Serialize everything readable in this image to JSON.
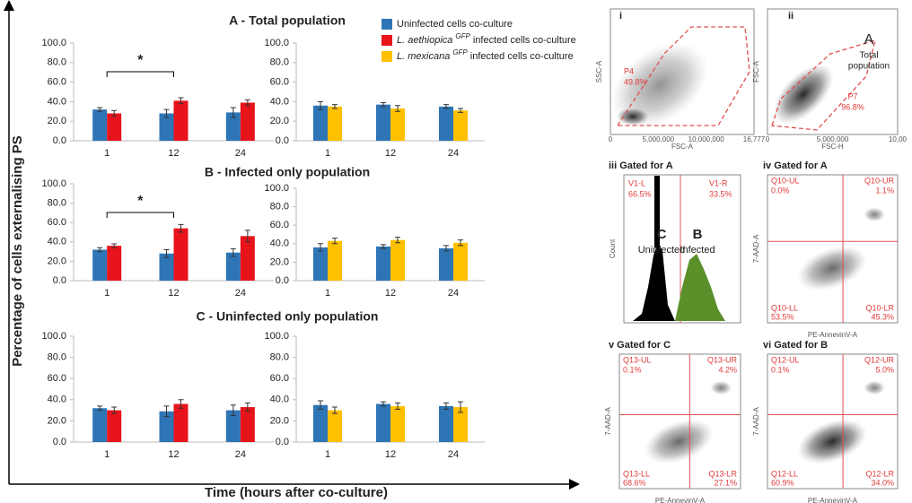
{
  "figure": {
    "y_label": "Percentage of cells externalising PS",
    "x_label": "Time (hours after co-culture)"
  },
  "legend": [
    {
      "text": "Uninfected cells co-culture",
      "color": "#2e75b6"
    },
    {
      "species": "L. aethiopica",
      "tag": "GFP",
      "text": "infected cells co-culture",
      "color": "#e8141b"
    },
    {
      "species": "L. mexicana",
      "tag": "GFP",
      "text": "infected cells co-culture",
      "color": "#ffc000"
    }
  ],
  "chart_data": [
    {
      "type": "bar",
      "title": "A - Total population",
      "categories": [
        "1",
        "12",
        "24"
      ],
      "series": [
        {
          "color": "#2e75b6",
          "values": [
            32,
            28,
            29
          ],
          "errors": [
            2,
            4,
            5
          ]
        },
        {
          "color": "#e8141b",
          "values": [
            28,
            41,
            39
          ],
          "errors": [
            3,
            3,
            3
          ]
        }
      ],
      "ylim": [
        0,
        100
      ],
      "yticks": [
        {
          "value": 0,
          "label": "0.0"
        },
        {
          "value": 20,
          "label": "20.0"
        },
        {
          "value": 40,
          "label": "40.0"
        },
        {
          "value": 60,
          "label": "60.0"
        },
        {
          "value": 80,
          "label": "80.0"
        },
        {
          "value": 100,
          "label": "100.0"
        }
      ],
      "annotations": [
        {
          "text": "*"
        }
      ]
    },
    {
      "type": "bar",
      "categories": [
        "1",
        "12",
        "24"
      ],
      "series": [
        {
          "color": "#2e75b6",
          "values": [
            36,
            37,
            35
          ],
          "errors": [
            4,
            2,
            2
          ]
        },
        {
          "color": "#ffc000",
          "values": [
            35,
            33,
            31
          ],
          "errors": [
            2,
            3,
            2
          ]
        }
      ],
      "ylim": [
        0,
        100
      ],
      "yticks": [
        {
          "value": 0,
          "label": "0.0"
        },
        {
          "value": 20,
          "label": "20.0"
        },
        {
          "value": 40,
          "label": "40.0"
        },
        {
          "value": 60,
          "label": "60.0"
        },
        {
          "value": 80,
          "label": "80.0"
        },
        {
          "value": 100,
          "label": "100.0"
        }
      ]
    },
    {
      "type": "bar",
      "title": "B - Infected only population",
      "categories": [
        "1",
        "12",
        "24"
      ],
      "series": [
        {
          "color": "#2e75b6",
          "values": [
            32,
            28,
            29
          ],
          "errors": [
            2,
            4,
            4
          ]
        },
        {
          "color": "#e8141b",
          "values": [
            36,
            54,
            46
          ],
          "errors": [
            2,
            4,
            6
          ]
        }
      ],
      "ylim": [
        0,
        100
      ],
      "yticks": [
        {
          "value": 0,
          "label": "0.0"
        },
        {
          "value": 20,
          "label": "20.0"
        },
        {
          "value": 40,
          "label": "40.0"
        },
        {
          "value": 60,
          "label": "60.0"
        },
        {
          "value": 80,
          "label": "80.0"
        },
        {
          "value": 100,
          "label": "100.0"
        }
      ],
      "annotations": [
        {
          "text": "*"
        }
      ]
    },
    {
      "type": "bar",
      "categories": [
        "1",
        "12",
        "24"
      ],
      "series": [
        {
          "color": "#2e75b6",
          "values": [
            36,
            37,
            35
          ],
          "errors": [
            4,
            2,
            3
          ]
        },
        {
          "color": "#ffc000",
          "values": [
            43,
            44,
            41
          ],
          "errors": [
            3,
            3,
            3
          ]
        }
      ],
      "ylim": [
        0,
        100
      ],
      "yticks": [
        {
          "value": 0,
          "label": "0.0"
        },
        {
          "value": 20,
          "label": "20.0"
        },
        {
          "value": 40,
          "label": "40.0"
        },
        {
          "value": 60,
          "label": "60.0"
        },
        {
          "value": 80,
          "label": "80.0"
        },
        {
          "value": 100,
          "label": "100.0"
        }
      ]
    },
    {
      "type": "bar",
      "title": "C - Uninfected only population",
      "categories": [
        "1",
        "12",
        "24"
      ],
      "series": [
        {
          "color": "#2e75b6",
          "values": [
            32,
            29,
            30
          ],
          "errors": [
            2,
            5,
            5
          ]
        },
        {
          "color": "#e8141b",
          "values": [
            30,
            36,
            33
          ],
          "errors": [
            3,
            4,
            4
          ]
        }
      ],
      "ylim": [
        0,
        100
      ],
      "yticks": [
        {
          "value": 0,
          "label": "0.0"
        },
        {
          "value": 20,
          "label": "20.0"
        },
        {
          "value": 40,
          "label": "40.0"
        },
        {
          "value": 60,
          "label": "60.0"
        },
        {
          "value": 80,
          "label": "80.0"
        },
        {
          "value": 100,
          "label": "100.0"
        }
      ]
    },
    {
      "type": "bar",
      "categories": [
        "1",
        "12",
        "24"
      ],
      "series": [
        {
          "color": "#2e75b6",
          "values": [
            35,
            36,
            34
          ],
          "errors": [
            4,
            2,
            3
          ]
        },
        {
          "color": "#ffc000",
          "values": [
            30,
            34,
            33
          ],
          "errors": [
            3,
            3,
            5
          ]
        }
      ],
      "ylim": [
        0,
        100
      ],
      "yticks": [
        {
          "value": 0,
          "label": "0.0"
        },
        {
          "value": 20,
          "label": "20.0"
        },
        {
          "value": 40,
          "label": "40.0"
        },
        {
          "value": 60,
          "label": "60.0"
        },
        {
          "value": 80,
          "label": "80.0"
        },
        {
          "value": 100,
          "label": "100.0"
        }
      ]
    }
  ],
  "panels": [
    {
      "label": "i",
      "texts": [
        "P4",
        "49.8%"
      ],
      "y_axis": "SSC-A",
      "x_axis": "FSC-A",
      "x_ticks": [
        "0",
        "5,000,000",
        "10,000,000",
        "16,777"
      ]
    },
    {
      "label": "ii",
      "texts": [
        "A",
        "Total",
        "population",
        "P7",
        "96.8%"
      ],
      "y_axis": "FSC-A",
      "x_axis": "FSC-H",
      "x_ticks": [
        "0",
        "5,000,000",
        "10,00"
      ]
    },
    {
      "label": "iii Gated for A",
      "texts": [
        "V1-L",
        "66.5%",
        "V1-R",
        "33.5%",
        "C",
        "Uninfected",
        "B",
        "Infected"
      ],
      "y_axis": "Count"
    },
    {
      "label": "iv Gated for A",
      "quadrants": [
        "Q10-UL",
        "0.0%",
        "Q10-UR",
        "1.1%",
        "Q10-LL",
        "53.5%",
        "Q10-LR",
        "45.3%"
      ],
      "y_axis": "7-AAD-A",
      "x_axis": "PE-AnnevinV-A"
    },
    {
      "label": "v Gated for C",
      "quadrants": [
        "Q13-UL",
        "0.1%",
        "Q13-UR",
        "4.2%",
        "Q13-LL",
        "68.6%",
        "Q13-LR",
        "27.1%"
      ],
      "y_axis": "7-AAD-A",
      "x_axis": "PE-AnnevinV-A"
    },
    {
      "label": "vi Gated for B",
      "quadrants": [
        "Q12-UL",
        "0.1%",
        "Q12-UR",
        "5.0%",
        "Q12-LL",
        "60.9%",
        "Q12-LR",
        "34.0%"
      ],
      "y_axis": "7-AAD-A",
      "x_axis": "PE-AnnevinV-A"
    }
  ]
}
